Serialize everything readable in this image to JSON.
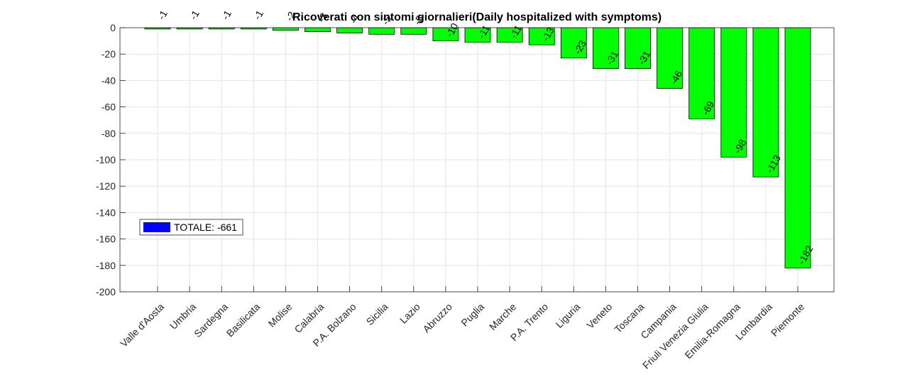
{
  "chart_data": {
    "type": "bar",
    "title": "Ricoverati con sintomi giornalieri(Daily hospitalized with symptoms)",
    "xlabel": "",
    "ylabel": "",
    "categories": [
      "Valle d'Aosta",
      "Umbria",
      "Sardegna",
      "Basilicata",
      "Molise",
      "Calabria",
      "P.A. Bolzano",
      "Sicilia",
      "Lazio",
      "Abruzzo",
      "Puglia",
      "Marche",
      "P.A. Trento",
      "Liguria",
      "Veneto",
      "Toscana",
      "Campania",
      "Friuli Venezia Giulia",
      "Emilia-Romagna",
      "Lombardia",
      "Piemonte"
    ],
    "values": [
      -1,
      -1,
      -1,
      -1,
      -2,
      -3,
      -4,
      -5,
      -5,
      -10,
      -11,
      -11,
      -13,
      -23,
      -31,
      -31,
      -46,
      -69,
      -98,
      -113,
      -182
    ],
    "data_labels": [
      "-1",
      "-1",
      "-1",
      "-1",
      "-2",
      "-3",
      "-4",
      "-5",
      "-5",
      "-10",
      "-11",
      "-11",
      "-13",
      "-23",
      "-31",
      "-31",
      "-46",
      "-69",
      "-98",
      "-113",
      "-182"
    ],
    "ylim": [
      -200,
      0
    ],
    "yticks": [
      0,
      -20,
      -40,
      -60,
      -80,
      -100,
      -120,
      -140,
      -160,
      -180,
      -200
    ],
    "grid": true,
    "bar_color": "#00ff00",
    "legend": {
      "placement": "lower-left",
      "entry": "TOTALE: -661",
      "color": "#0000ff"
    }
  }
}
